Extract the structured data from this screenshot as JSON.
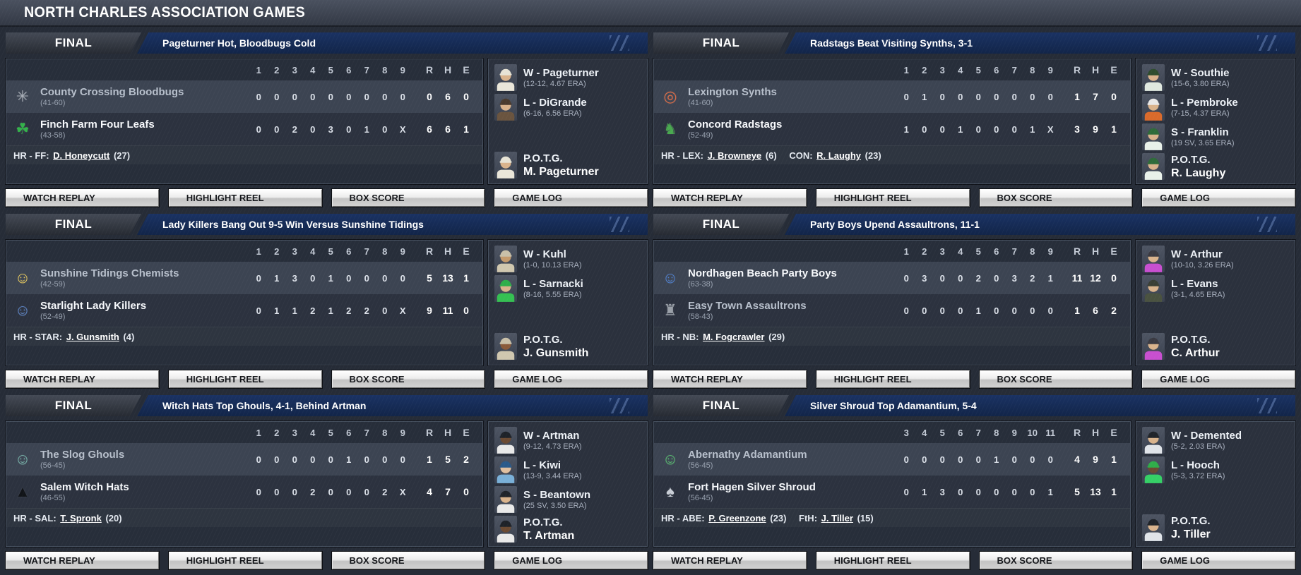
{
  "title": "NORTH CHARLES ASSOCIATION GAMES",
  "labels": {
    "final": "FINAL",
    "rhe": [
      "R",
      "H",
      "E"
    ],
    "potg": "P.O.T.G."
  },
  "buttons": [
    "WATCH REPLAY",
    "HIGHLIGHT REEL",
    "BOX SCORE",
    "GAME LOG"
  ],
  "games": [
    {
      "headline": "Pageturner Hot, Bloodbugs Cold",
      "innings_header": [
        "1",
        "2",
        "3",
        "4",
        "5",
        "6",
        "7",
        "8",
        "9"
      ],
      "away": {
        "name": "County Crossing Bloodbugs",
        "record": "(41-60)",
        "winner": false,
        "icon": "bloodbug",
        "logo_glyph": "✳",
        "logo_color": "#a9afb8",
        "innings": [
          "0",
          "0",
          "0",
          "0",
          "0",
          "0",
          "0",
          "0",
          "0"
        ],
        "rhe": [
          "0",
          "6",
          "0"
        ]
      },
      "home": {
        "name": "Finch Farm Four Leafs",
        "record": "(43-58)",
        "winner": true,
        "icon": "leprechaun-clover",
        "logo_glyph": "☘",
        "logo_color": "#33b24a",
        "innings": [
          "0",
          "0",
          "2",
          "0",
          "3",
          "0",
          "1",
          "0",
          "X"
        ],
        "rhe": [
          "6",
          "6",
          "1"
        ]
      },
      "hr": [
        {
          "label": "HR - FF:",
          "player": "D. Honeycutt",
          "count": "(27)"
        }
      ],
      "pitchers": [
        {
          "line": "W - Pageturner",
          "stat": "(12-12, 4.67 ERA)",
          "skin": "#d9b38c",
          "cap": "#e7e3d5",
          "shirt": "#eae6d9"
        },
        {
          "line": "L - DiGrande",
          "stat": "(6-16, 6.56 ERA)",
          "skin": "#d9b38c",
          "cap": "#4a3b2e",
          "shirt": "#6a543f"
        }
      ],
      "potg": {
        "name": "M. Pageturner",
        "skin": "#d9b38c",
        "cap": "#e7e3d5",
        "shirt": "#eae6d9"
      }
    },
    {
      "headline": "Radstags Beat Visiting Synths, 3-1",
      "innings_header": [
        "1",
        "2",
        "3",
        "4",
        "5",
        "6",
        "7",
        "8",
        "9"
      ],
      "away": {
        "name": "Lexington Synths",
        "record": "(41-60)",
        "winner": false,
        "icon": "synth-ring",
        "logo_glyph": "◎",
        "logo_color": "#d96a45",
        "innings": [
          "0",
          "1",
          "0",
          "0",
          "0",
          "0",
          "0",
          "0",
          "0"
        ],
        "rhe": [
          "1",
          "7",
          "0"
        ]
      },
      "home": {
        "name": "Concord Radstags",
        "record": "(52-49)",
        "winner": true,
        "icon": "radstag",
        "logo_glyph": "♞",
        "logo_color": "#49a84f",
        "innings": [
          "1",
          "0",
          "0",
          "1",
          "0",
          "0",
          "0",
          "1",
          "X"
        ],
        "rhe": [
          "3",
          "9",
          "1"
        ]
      },
      "hr": [
        {
          "label": "HR - LEX:",
          "player": "J. Browneye",
          "count": "(6)"
        },
        {
          "label": "CON:",
          "player": "R. Laughy",
          "count": "(23)"
        }
      ],
      "pitchers": [
        {
          "line": "W - Southie",
          "stat": "(15-6, 3.80 ERA)",
          "skin": "#d9b38c",
          "cap": "#2e4d2e",
          "shirt": "#dfe8df"
        },
        {
          "line": "L - Pembroke",
          "stat": "(7-15, 4.37 ERA)",
          "skin": "#d9b38c",
          "cap": "#e8e8e8",
          "shirt": "#d96a2b"
        },
        {
          "line": "S - Franklin",
          "stat": "(19 SV, 3.65 ERA)",
          "skin": "#d9b38c",
          "cap": "#2e6b3a",
          "shirt": "#e9f1e9"
        }
      ],
      "potg": {
        "name": "R. Laughy",
        "skin": "#d9b38c",
        "cap": "#2e6b3a",
        "shirt": "#e9f1e9"
      }
    },
    {
      "headline": "Lady Killers Bang Out 9-5 Win Versus Sunshine Tidings",
      "innings_header": [
        "1",
        "2",
        "3",
        "4",
        "5",
        "6",
        "7",
        "8",
        "9"
      ],
      "away": {
        "name": "Sunshine Tidings Chemists",
        "record": "(42-59)",
        "winner": false,
        "icon": "chemist",
        "logo_glyph": "☺",
        "logo_color": "#e4c65a",
        "innings": [
          "0",
          "1",
          "3",
          "0",
          "1",
          "0",
          "0",
          "0",
          "0"
        ],
        "rhe": [
          "5",
          "13",
          "1"
        ]
      },
      "home": {
        "name": "Starlight Lady Killers",
        "record": "(52-49)",
        "winner": true,
        "icon": "vault-couple",
        "logo_glyph": "☺",
        "logo_color": "#5d87cc",
        "innings": [
          "0",
          "1",
          "1",
          "2",
          "1",
          "2",
          "2",
          "0",
          "X"
        ],
        "rhe": [
          "9",
          "11",
          "0"
        ]
      },
      "hr": [
        {
          "label": "HR - STAR:",
          "player": "J. Gunsmith",
          "count": "(4)"
        }
      ],
      "pitchers": [
        {
          "line": "W - Kuhl",
          "stat": "(1-0, 10.13 ERA)",
          "skin": "#c49a6c",
          "cap": "#c9c0a9",
          "shirt": "#d0c7af"
        },
        {
          "line": "L - Sarnacki",
          "stat": "(8-16, 5.55 ERA)",
          "skin": "#d9b38c",
          "cap": "#2fae4a",
          "shirt": "#35c052"
        }
      ],
      "potg": {
        "name": "J. Gunsmith",
        "skin": "#8a5a3a",
        "cap": "#c9c0a9",
        "shirt": "#d0c7af"
      }
    },
    {
      "headline": "Party Boys Upend Assaultrons, 11-1",
      "innings_header": [
        "1",
        "2",
        "3",
        "4",
        "5",
        "6",
        "7",
        "8",
        "9"
      ],
      "away": {
        "name": "Nordhagen Beach Party Boys",
        "record": "(63-38)",
        "winner": true,
        "icon": "vault-boy",
        "logo_glyph": "☺",
        "logo_color": "#4d7fd0",
        "innings": [
          "0",
          "3",
          "0",
          "0",
          "2",
          "0",
          "3",
          "2",
          "1"
        ],
        "rhe": [
          "11",
          "12",
          "0"
        ]
      },
      "home": {
        "name": "Easy Town Assaultrons",
        "record": "(58-43)",
        "winner": false,
        "icon": "assaultron",
        "logo_glyph": "♜",
        "logo_color": "#9aa0a8",
        "innings": [
          "0",
          "0",
          "0",
          "0",
          "1",
          "0",
          "0",
          "0",
          "0"
        ],
        "rhe": [
          "1",
          "6",
          "2"
        ]
      },
      "hr": [
        {
          "label": "HR - NB:",
          "player": "M. Fogcrawler",
          "count": "(29)"
        }
      ],
      "pitchers": [
        {
          "line": "W - Arthur",
          "stat": "(10-10, 3.26 ERA)",
          "skin": "#d9b38c",
          "cap": "#3a3a42",
          "shirt": "#c84fd0"
        },
        {
          "line": "L - Evans",
          "stat": "(3-1, 4.65 ERA)",
          "skin": "#d9b38c",
          "cap": "#3a3f35",
          "shirt": "#4a5240"
        }
      ],
      "potg": {
        "name": "C. Arthur",
        "skin": "#d9b38c",
        "cap": "#3a3a42",
        "shirt": "#c84fd0"
      }
    },
    {
      "headline": "Witch Hats Top Ghouls, 4-1, Behind Artman",
      "innings_header": [
        "1",
        "2",
        "3",
        "4",
        "5",
        "6",
        "7",
        "8",
        "9"
      ],
      "away": {
        "name": "The Slog Ghouls",
        "record": "(56-45)",
        "winner": false,
        "icon": "ghoul",
        "logo_glyph": "☺",
        "logo_color": "#76b4aa",
        "innings": [
          "0",
          "0",
          "0",
          "0",
          "0",
          "1",
          "0",
          "0",
          "0"
        ],
        "rhe": [
          "1",
          "5",
          "2"
        ]
      },
      "home": {
        "name": "Salem Witch Hats",
        "record": "(46-55)",
        "winner": true,
        "icon": "witch-hat",
        "logo_glyph": "▲",
        "logo_color": "#111418",
        "innings": [
          "0",
          "0",
          "0",
          "2",
          "0",
          "0",
          "0",
          "2",
          "X"
        ],
        "rhe": [
          "4",
          "7",
          "0"
        ]
      },
      "hr": [
        {
          "label": "HR - SAL:",
          "player": "T. Spronk",
          "count": "(20)"
        }
      ],
      "pitchers": [
        {
          "line": "W - Artman",
          "stat": "(9-12, 4.73 ERA)",
          "skin": "#6b4a32",
          "cap": "#1e2228",
          "shirt": "#e9e9e9"
        },
        {
          "line": "L - Kiwi",
          "stat": "(13-9, 3.44 ERA)",
          "skin": "#e0c0a0",
          "cap": "#2a5a8a",
          "shirt": "#7ab0d8"
        },
        {
          "line": "S - Beantown",
          "stat": "(25 SV, 3.50 ERA)",
          "skin": "#d9b38c",
          "cap": "#20242a",
          "shirt": "#e9e9e9"
        }
      ],
      "potg": {
        "name": "T. Artman",
        "skin": "#6b4a32",
        "cap": "#1e2228",
        "shirt": "#e9e9e9"
      }
    },
    {
      "headline": "Silver Shroud Top Adamantium, 5-4",
      "innings_header": [
        "3",
        "4",
        "5",
        "6",
        "7",
        "8",
        "9",
        "10",
        "11"
      ],
      "away": {
        "name": "Abernathy Adamantium",
        "record": "(56-45)",
        "winner": false,
        "icon": "adamantium-figure",
        "logo_glyph": "☺",
        "logo_color": "#56c06e",
        "innings": [
          "0",
          "0",
          "0",
          "0",
          "0",
          "1",
          "0",
          "0",
          "0"
        ],
        "rhe": [
          "4",
          "9",
          "1"
        ]
      },
      "home": {
        "name": "Fort Hagen Silver Shroud",
        "record": "(56-45)",
        "winner": true,
        "icon": "silver-shroud",
        "logo_glyph": "♠",
        "logo_color": "#c9ced6",
        "innings": [
          "0",
          "1",
          "3",
          "0",
          "0",
          "0",
          "0",
          "0",
          "1"
        ],
        "rhe": [
          "5",
          "13",
          "1"
        ]
      },
      "hr": [
        {
          "label": "HR - ABE:",
          "player": "P. Greenzone",
          "count": "(23)"
        },
        {
          "label": "FtH:",
          "player": "J. Tiller",
          "count": "(15)"
        }
      ],
      "pitchers": [
        {
          "line": "W - Demented",
          "stat": "(5-2, 2.03 ERA)",
          "skin": "#d9b38c",
          "cap": "#20242a",
          "shirt": "#e0e4e9"
        },
        {
          "line": "L - Hooch",
          "stat": "(5-3, 3.72 ERA)",
          "skin": "#6b4a32",
          "cap": "#2fae4a",
          "shirt": "#35d066"
        }
      ],
      "potg": {
        "name": "J. Tiller",
        "skin": "#d9b38c",
        "cap": "#20242a",
        "shirt": "#e0e4e9"
      }
    }
  ]
}
